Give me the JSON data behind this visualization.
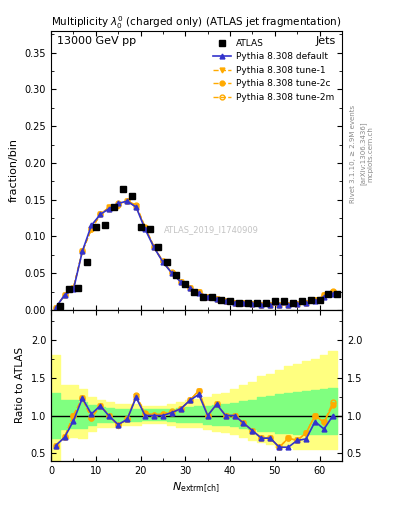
{
  "title_top": "13000 GeV pp",
  "title_right": "Jets",
  "plot_title": "Multiplicity $\\lambda_0^0$ (charged only) (ATLAS jet fragmentation)",
  "ylabel_main": "fraction/bin",
  "ylabel_ratio": "Ratio to ATLAS",
  "xlabel": "$N_{\\mathrm{extrm[ch]}}$",
  "rivet_text": "Rivet 3.1.10, ≥ 2.9M events",
  "arxiv_text": "[arXiv:1306.3436]",
  "mcplots_text": "mcplots.cern.ch",
  "watermark": "ATLAS_2019_I1740909",
  "atlas_data_x": [
    2,
    4,
    6,
    8,
    10,
    12,
    14,
    16,
    18,
    20,
    22,
    24,
    26,
    28,
    30,
    32,
    34,
    36,
    38,
    40,
    42,
    44,
    46,
    48,
    50,
    52,
    54,
    56,
    58,
    60,
    62,
    64
  ],
  "atlas_data_y": [
    0.005,
    0.028,
    0.03,
    0.065,
    0.113,
    0.115,
    0.14,
    0.165,
    0.155,
    0.113,
    0.11,
    0.085,
    0.065,
    0.048,
    0.035,
    0.025,
    0.018,
    0.018,
    0.013,
    0.012,
    0.01,
    0.01,
    0.01,
    0.01,
    0.012,
    0.012,
    0.01,
    0.012,
    0.013,
    0.013,
    0.022,
    0.022
  ],
  "pythia_default_x": [
    1,
    3,
    5,
    7,
    9,
    11,
    13,
    15,
    17,
    19,
    21,
    23,
    25,
    27,
    29,
    31,
    33,
    35,
    37,
    39,
    41,
    43,
    45,
    47,
    49,
    51,
    53,
    55,
    57,
    59,
    61,
    63
  ],
  "pythia_default_y": [
    0.003,
    0.02,
    0.028,
    0.08,
    0.115,
    0.13,
    0.138,
    0.145,
    0.148,
    0.14,
    0.11,
    0.085,
    0.065,
    0.05,
    0.038,
    0.03,
    0.023,
    0.018,
    0.015,
    0.012,
    0.01,
    0.009,
    0.008,
    0.007,
    0.007,
    0.007,
    0.007,
    0.008,
    0.009,
    0.012,
    0.018,
    0.022
  ],
  "pythia_tune1_x": [
    1,
    3,
    5,
    7,
    9,
    11,
    13,
    15,
    17,
    19,
    21,
    23,
    25,
    27,
    29,
    31,
    33,
    35,
    37,
    39,
    41,
    43,
    45,
    47,
    49,
    51,
    53,
    55,
    57,
    59,
    61,
    63
  ],
  "pythia_tune1_y": [
    0.003,
    0.02,
    0.03,
    0.08,
    0.11,
    0.13,
    0.14,
    0.142,
    0.148,
    0.142,
    0.112,
    0.085,
    0.065,
    0.05,
    0.038,
    0.03,
    0.024,
    0.018,
    0.015,
    0.012,
    0.01,
    0.009,
    0.008,
    0.007,
    0.007,
    0.007,
    0.007,
    0.008,
    0.01,
    0.013,
    0.02,
    0.025
  ],
  "pythia_tune2c_x": [
    1,
    3,
    5,
    7,
    9,
    11,
    13,
    15,
    17,
    19,
    21,
    23,
    25,
    27,
    29,
    31,
    33,
    35,
    37,
    39,
    41,
    43,
    45,
    47,
    49,
    51,
    53,
    55,
    57,
    59,
    61,
    63
  ],
  "pythia_tune2c_y": [
    0.003,
    0.02,
    0.03,
    0.08,
    0.11,
    0.13,
    0.138,
    0.143,
    0.148,
    0.14,
    0.112,
    0.086,
    0.066,
    0.05,
    0.038,
    0.03,
    0.024,
    0.018,
    0.015,
    0.012,
    0.01,
    0.009,
    0.008,
    0.007,
    0.007,
    0.007,
    0.007,
    0.008,
    0.01,
    0.013,
    0.02,
    0.025
  ],
  "pythia_tune2m_x": [
    1,
    3,
    5,
    7,
    9,
    11,
    13,
    15,
    17,
    19,
    21,
    23,
    25,
    27,
    29,
    31,
    33,
    35,
    37,
    39,
    41,
    43,
    45,
    47,
    49,
    51,
    53,
    55,
    57,
    59,
    61,
    63
  ],
  "pythia_tune2m_y": [
    0.003,
    0.02,
    0.03,
    0.08,
    0.11,
    0.13,
    0.14,
    0.145,
    0.148,
    0.143,
    0.113,
    0.086,
    0.066,
    0.051,
    0.038,
    0.03,
    0.024,
    0.018,
    0.015,
    0.012,
    0.01,
    0.009,
    0.008,
    0.007,
    0.007,
    0.007,
    0.007,
    0.008,
    0.01,
    0.013,
    0.02,
    0.026
  ],
  "ratio_default_y": [
    0.6,
    0.71,
    0.93,
    1.23,
    1.02,
    1.13,
    0.99,
    0.88,
    0.95,
    1.24,
    1.0,
    1.0,
    1.0,
    1.04,
    1.09,
    1.2,
    1.28,
    1.0,
    1.15,
    1.0,
    1.0,
    0.9,
    0.8,
    0.7,
    0.7,
    0.58,
    0.58,
    0.67,
    0.69,
    0.92,
    0.82,
    1.0
  ],
  "ratio_tune1_y": [
    0.6,
    0.71,
    1.0,
    1.23,
    0.97,
    1.13,
    1.0,
    0.86,
    0.95,
    1.26,
    1.02,
    1.0,
    1.0,
    1.04,
    1.09,
    1.2,
    1.33,
    1.0,
    1.15,
    1.0,
    1.0,
    0.9,
    0.8,
    0.7,
    0.7,
    0.58,
    0.7,
    0.67,
    0.77,
    1.0,
    0.91,
    1.14
  ],
  "ratio_tune2c_y": [
    0.6,
    0.71,
    1.0,
    1.23,
    0.97,
    1.13,
    0.99,
    0.87,
    0.95,
    1.24,
    1.02,
    1.01,
    1.02,
    1.04,
    1.09,
    1.2,
    1.33,
    1.0,
    1.15,
    1.0,
    1.0,
    0.9,
    0.8,
    0.7,
    0.7,
    0.58,
    0.7,
    0.67,
    0.77,
    1.0,
    0.91,
    1.14
  ],
  "ratio_tune2m_y": [
    0.6,
    0.71,
    1.0,
    1.23,
    0.97,
    1.13,
    1.0,
    0.88,
    0.95,
    1.27,
    1.03,
    1.01,
    1.02,
    1.06,
    1.09,
    1.2,
    1.33,
    1.0,
    1.15,
    1.0,
    1.0,
    0.9,
    0.8,
    0.7,
    0.7,
    0.58,
    0.7,
    0.67,
    0.77,
    1.0,
    0.91,
    1.18
  ],
  "band_yellow_x": [
    0,
    2,
    4,
    6,
    8,
    10,
    12,
    14,
    16,
    18,
    20,
    22,
    24,
    26,
    28,
    30,
    32,
    34,
    36,
    38,
    40,
    42,
    44,
    46,
    48,
    50,
    52,
    54,
    56,
    58,
    60,
    62,
    64
  ],
  "band_yellow_lo": [
    0.4,
    0.4,
    0.7,
    0.72,
    0.7,
    0.8,
    0.85,
    0.85,
    0.88,
    0.88,
    0.88,
    0.9,
    0.9,
    0.9,
    0.88,
    0.85,
    0.85,
    0.85,
    0.82,
    0.8,
    0.78,
    0.75,
    0.72,
    0.68,
    0.65,
    0.62,
    0.58,
    0.58,
    0.55,
    0.55,
    0.55,
    0.55,
    0.55
  ],
  "band_yellow_hi": [
    1.8,
    1.8,
    1.4,
    1.4,
    1.35,
    1.25,
    1.2,
    1.18,
    1.15,
    1.15,
    1.15,
    1.13,
    1.12,
    1.12,
    1.15,
    1.18,
    1.2,
    1.22,
    1.25,
    1.28,
    1.3,
    1.35,
    1.4,
    1.45,
    1.52,
    1.55,
    1.6,
    1.65,
    1.68,
    1.72,
    1.75,
    1.8,
    1.85
  ],
  "band_green_x": [
    0,
    2,
    4,
    6,
    8,
    10,
    12,
    14,
    16,
    18,
    20,
    22,
    24,
    26,
    28,
    30,
    32,
    34,
    36,
    38,
    40,
    42,
    44,
    46,
    48,
    50,
    52,
    54,
    56,
    58,
    60,
    62,
    64
  ],
  "band_green_lo": [
    0.7,
    0.7,
    0.82,
    0.84,
    0.83,
    0.88,
    0.91,
    0.91,
    0.93,
    0.93,
    0.93,
    0.94,
    0.94,
    0.94,
    0.93,
    0.91,
    0.91,
    0.91,
    0.89,
    0.88,
    0.87,
    0.86,
    0.84,
    0.82,
    0.8,
    0.79,
    0.77,
    0.77,
    0.76,
    0.76,
    0.76,
    0.76,
    0.76
  ],
  "band_green_hi": [
    1.3,
    1.3,
    1.2,
    1.2,
    1.18,
    1.14,
    1.11,
    1.1,
    1.09,
    1.09,
    1.09,
    1.08,
    1.08,
    1.08,
    1.09,
    1.1,
    1.11,
    1.12,
    1.13,
    1.14,
    1.15,
    1.17,
    1.19,
    1.21,
    1.24,
    1.26,
    1.28,
    1.3,
    1.31,
    1.33,
    1.34,
    1.35,
    1.36
  ],
  "color_default": "#3333cc",
  "color_tune1": "#ffaa00",
  "color_tune2c": "#ffaa00",
  "color_tune2m": "#ffaa00",
  "color_yellow": "#ffff80",
  "color_green": "#80ff80",
  "xlim": [
    0,
    65
  ],
  "ylim_main": [
    0,
    0.38
  ],
  "ylim_ratio": [
    0.4,
    2.4
  ],
  "yticks_main": [
    0.0,
    0.05,
    0.1,
    0.15,
    0.2,
    0.25,
    0.3,
    0.35
  ],
  "yticks_ratio": [
    0.5,
    1.0,
    1.5,
    2.0
  ],
  "xticks": [
    0,
    10,
    20,
    30,
    40,
    50,
    60
  ]
}
